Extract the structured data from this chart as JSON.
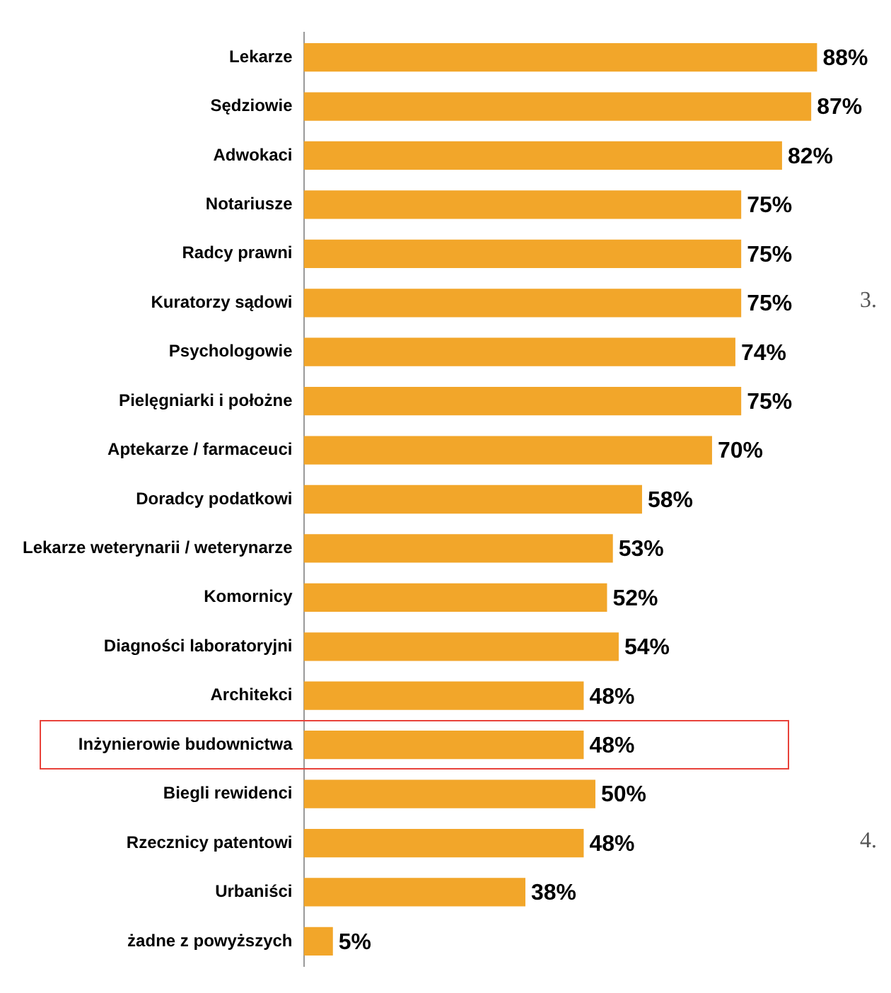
{
  "chart_data": {
    "type": "bar",
    "orientation": "horizontal",
    "categories": [
      "Lekarze",
      "Sędziowie",
      "Adwokaci",
      "Notariusze",
      "Radcy prawni",
      "Kuratorzy sądowi",
      "Psychologowie",
      "Pielęgniarki i położne",
      "Aptekarze / farmaceuci",
      "Doradcy podatkowi",
      "Lekarze weterynarii / weterynarze",
      "Komornicy",
      "Diagności laboratoryjni",
      "Architekci",
      "Inżynierowie budownictwa",
      "Biegli rewidenci",
      "Rzecznicy patentowi",
      "Urbaniści",
      "żadne z powyższych"
    ],
    "values": [
      88,
      87,
      82,
      75,
      75,
      75,
      74,
      75,
      70,
      58,
      53,
      52,
      54,
      48,
      48,
      50,
      48,
      38,
      5
    ],
    "value_labels": [
      "88%",
      "87%",
      "82%",
      "75%",
      "75%",
      "75%",
      "74%",
      "75%",
      "70%",
      "58%",
      "53%",
      "52%",
      "54%",
      "48%",
      "48%",
      "50%",
      "48%",
      "38%",
      "5%"
    ],
    "color": "#f2a62a",
    "grid": false,
    "annotations": [
      "3.",
      "4."
    ]
  }
}
